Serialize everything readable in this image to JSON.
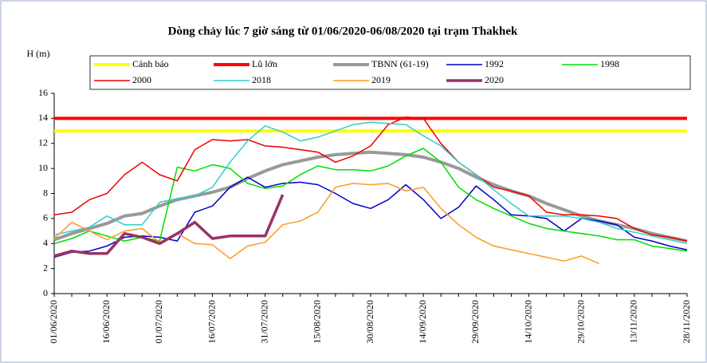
{
  "chart_data": {
    "type": "line",
    "title": "Dòng chảy lúc 7 giờ sáng từ 01/06/2020-06/08/2020 tại trạm Thakhek",
    "y_label": "H (m)",
    "categories": [
      "01/06/2020",
      null,
      null,
      "16/06/2020",
      null,
      null,
      "01/07/2020",
      null,
      null,
      "16/07/2020",
      null,
      null,
      "31/07/2020",
      null,
      null,
      "15/08/2020",
      null,
      null,
      "30/08/2020",
      null,
      null,
      "14/09/2020",
      null,
      null,
      "29/09/2020",
      null,
      null,
      "14/10/2020",
      null,
      null,
      "29/10/2020",
      null,
      null,
      "13/11/2020",
      null,
      null,
      "28/11/2020"
    ],
    "ylim": [
      0,
      16
    ],
    "yticks": [
      0,
      2,
      4,
      6,
      8,
      10,
      12,
      14,
      16
    ],
    "series": [
      {
        "name": "Cảnh báo",
        "color": "#ffff00",
        "width": 4,
        "values": [
          13,
          13,
          13,
          13,
          13,
          13,
          13,
          13,
          13,
          13,
          13,
          13,
          13,
          13,
          13,
          13,
          13,
          13,
          13,
          13,
          13,
          13,
          13,
          13,
          13,
          13,
          13,
          13,
          13,
          13,
          13,
          13,
          13,
          13,
          13,
          13,
          13
        ]
      },
      {
        "name": "Lũ lớn",
        "color": "#ff0000",
        "width": 4,
        "values": [
          14,
          14,
          14,
          14,
          14,
          14,
          14,
          14,
          14,
          14,
          14,
          14,
          14,
          14,
          14,
          14,
          14,
          14,
          14,
          14,
          14,
          14,
          14,
          14,
          14,
          14,
          14,
          14,
          14,
          14,
          14,
          14,
          14,
          14,
          14,
          14,
          14
        ]
      },
      {
        "name": "TBNN (61-19)",
        "color": "#999999",
        "width": 4,
        "values": [
          4.3,
          4.8,
          5.2,
          5.6,
          6.2,
          6.4,
          7.0,
          7.5,
          7.8,
          8.1,
          8.5,
          9.2,
          9.8,
          10.3,
          10.6,
          10.9,
          11.1,
          11.2,
          11.3,
          11.2,
          11.1,
          10.9,
          10.5,
          10.0,
          9.3,
          8.7,
          8.2,
          7.8,
          7.2,
          6.7,
          6.2,
          5.8,
          5.5,
          5.2,
          4.8,
          4.5,
          4.2
        ]
      },
      {
        "name": "1992",
        "color": "#0000cc",
        "width": 1.5,
        "values": [
          2.9,
          3.3,
          3.4,
          3.8,
          4.5,
          4.6,
          4.5,
          4.2,
          6.5,
          7.0,
          8.5,
          9.3,
          8.5,
          8.8,
          8.9,
          8.7,
          8.0,
          7.2,
          6.8,
          7.5,
          8.7,
          7.5,
          6.0,
          6.9,
          8.6,
          7.5,
          6.3,
          6.2,
          6.0,
          5.0,
          6.0,
          5.8,
          5.5,
          4.5,
          4.2,
          3.8,
          3.5
        ]
      },
      {
        "name": "1998",
        "color": "#00dd00",
        "width": 1.5,
        "values": [
          4.0,
          4.4,
          5.0,
          4.6,
          4.2,
          4.5,
          4.2,
          10.1,
          9.8,
          10.3,
          10.0,
          8.8,
          8.4,
          8.6,
          9.5,
          10.2,
          9.9,
          9.9,
          9.8,
          10.2,
          11.0,
          11.6,
          10.5,
          8.5,
          7.5,
          6.8,
          6.2,
          5.6,
          5.2,
          5.0,
          4.8,
          4.6,
          4.3,
          4.3,
          3.8,
          3.6,
          3.4
        ]
      },
      {
        "name": "2000",
        "color": "#ee0000",
        "width": 1.5,
        "values": [
          6.3,
          6.5,
          7.5,
          8.0,
          9.5,
          10.5,
          9.5,
          9.0,
          11.5,
          12.3,
          12.2,
          12.3,
          11.8,
          11.7,
          11.5,
          11.3,
          10.5,
          11.0,
          11.8,
          13.5,
          14.1,
          14.0,
          12.0,
          10.5,
          9.5,
          8.5,
          8.2,
          7.8,
          6.5,
          6.3,
          6.3,
          6.2,
          6.0,
          5.2,
          4.7,
          4.5,
          4.2
        ]
      },
      {
        "name": "2018",
        "color": "#33cccc",
        "width": 1.5,
        "values": [
          4.7,
          5.0,
          5.3,
          6.2,
          5.5,
          5.5,
          7.3,
          7.6,
          7.8,
          8.5,
          10.5,
          12.2,
          13.4,
          12.9,
          12.2,
          12.5,
          13.0,
          13.5,
          13.7,
          13.6,
          13.5,
          12.6,
          11.8,
          10.5,
          9.5,
          8.3,
          7.2,
          6.2,
          6.2,
          6.2,
          6.0,
          5.7,
          5.2,
          4.9,
          4.6,
          4.3,
          4.0
        ]
      },
      {
        "name": "2019",
        "color": "#ff9922",
        "width": 1.5,
        "values": [
          4.4,
          5.7,
          5.0,
          4.3,
          5.0,
          5.2,
          4.1,
          4.8,
          4.0,
          3.9,
          2.8,
          3.8,
          4.1,
          5.5,
          5.8,
          6.5,
          8.5,
          8.8,
          8.7,
          8.8,
          8.2,
          8.5,
          6.8,
          5.5,
          4.5,
          3.8,
          3.5,
          3.2,
          2.9,
          2.6,
          3.0,
          2.4,
          null,
          null,
          null,
          null,
          null
        ]
      },
      {
        "name": "2020",
        "color": "#993366",
        "width": 3.5,
        "values": [
          3.0,
          3.4,
          3.2,
          3.2,
          4.8,
          4.5,
          4.0,
          4.8,
          5.7,
          4.4,
          4.6,
          4.6,
          4.6,
          7.9,
          null,
          null,
          null,
          null,
          null,
          null,
          null,
          null,
          null,
          null,
          null,
          null,
          null,
          null,
          null,
          null,
          null,
          null,
          null,
          null,
          null,
          null,
          null
        ]
      }
    ]
  }
}
